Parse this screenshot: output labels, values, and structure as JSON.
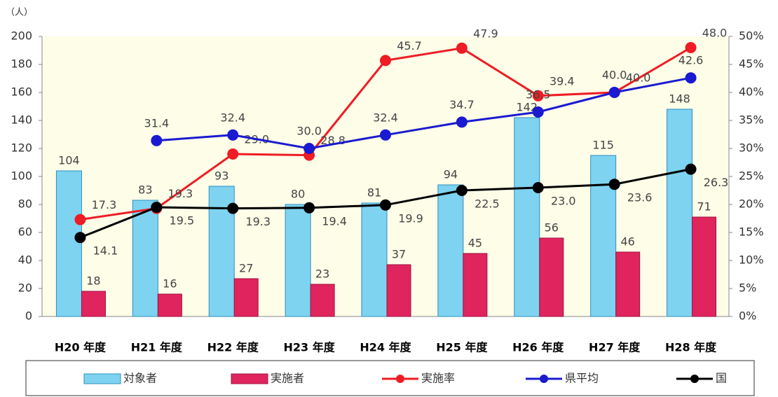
{
  "chart_data": {
    "type": "bar",
    "ylabel": "（人）",
    "categories": [
      "H20 年度",
      "H21 年度",
      "H22 年度",
      "H23 年度",
      "H24 年度",
      "H25 年度",
      "H26 年度",
      "H27 年度",
      "H28 年度"
    ],
    "ylim": [
      0,
      200
    ],
    "yticks": [
      0,
      20,
      40,
      60,
      80,
      100,
      120,
      140,
      160,
      180,
      200
    ],
    "y2lim": [
      0,
      50
    ],
    "y2ticks": [
      {
        "value": 0,
        "label": "0%"
      },
      {
        "value": 5,
        "label": "5%"
      },
      {
        "value": 10,
        "label": "10%"
      },
      {
        "value": 15,
        "label": "15%"
      },
      {
        "value": 20,
        "label": "20%"
      },
      {
        "value": 25,
        "label": "25%"
      },
      {
        "value": 30,
        "label": "30%"
      },
      {
        "value": 35,
        "label": "35%"
      },
      {
        "value": 40,
        "label": "40%"
      },
      {
        "value": 45,
        "label": "45%"
      },
      {
        "value": 50,
        "label": "50%"
      }
    ],
    "legend": "bottom",
    "series": [
      {
        "name": "対象者",
        "type": "bar",
        "color": "#7dd3f0",
        "values": [
          104,
          83,
          93,
          80,
          81,
          94,
          142,
          115,
          148
        ]
      },
      {
        "name": "実施者",
        "type": "bar",
        "color": "#e0245e",
        "values": [
          18,
          16,
          27,
          23,
          37,
          45,
          56,
          46,
          71
        ]
      },
      {
        "name": "実施率",
        "type": "line",
        "axis": "y2",
        "color": "#ee1c24",
        "values": [
          17.3,
          19.3,
          29.0,
          28.8,
          45.7,
          47.9,
          39.4,
          40.0,
          48.0
        ],
        "value_labels": [
          "17.3",
          "19.3",
          "29.0",
          "28.8",
          "45.7",
          "47.9",
          "39.4",
          "40.0",
          "48.0"
        ]
      },
      {
        "name": "県平均",
        "type": "line",
        "axis": "y2",
        "color": "#1a1ad0",
        "values": [
          null,
          31.4,
          32.4,
          30.0,
          32.4,
          34.7,
          36.5,
          40.0,
          42.6
        ],
        "value_labels": [
          null,
          "31.4",
          "32.4",
          "30.0",
          "32.4",
          "34.7",
          "36.5",
          "40.0",
          "42.6"
        ]
      },
      {
        "name": "国",
        "type": "line",
        "axis": "y2",
        "color": "#000000",
        "values": [
          14.1,
          19.5,
          19.3,
          19.4,
          19.9,
          22.5,
          23.0,
          23.6,
          26.3
        ],
        "value_labels": [
          "14.1",
          "19.5",
          "19.3",
          "19.4",
          "19.9",
          "22.5",
          "23.0",
          "23.6",
          "26.3"
        ]
      }
    ]
  }
}
